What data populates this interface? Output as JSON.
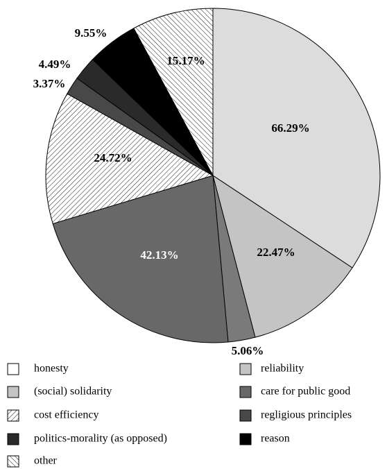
{
  "chart_data": {
    "type": "pie",
    "title": "",
    "slices": [
      {
        "name": "honesty",
        "value": 66.29,
        "label": "66.29%",
        "fill": "#dcdcdc",
        "pattern": "none",
        "label_color": "#000000"
      },
      {
        "name": "reliability",
        "value": 22.47,
        "label": "22.47%",
        "fill": "#c4c4c4",
        "pattern": "none",
        "label_color": "#000000"
      },
      {
        "name": "(social) solidarity",
        "value": 5.06,
        "label": "5.06%",
        "fill": "#7a7a7a",
        "pattern": "none",
        "label_color": "#000000"
      },
      {
        "name": "care for public good",
        "value": 42.13,
        "label": "42.13%",
        "fill": "#686868",
        "pattern": "none",
        "label_color": "#ffffff"
      },
      {
        "name": "cost efficiency",
        "value": 24.72,
        "label": "24.72%",
        "fill": "#ffffff",
        "pattern": "diag-right",
        "label_color": "#000000"
      },
      {
        "name": "regligious principles",
        "value": 3.37,
        "label": "3.37%",
        "fill": "#484848",
        "pattern": "none",
        "label_color": "#000000"
      },
      {
        "name": "politics-morality (as opposed)",
        "value": 4.49,
        "label": "4.49%",
        "fill": "#2a2a2a",
        "pattern": "none",
        "label_color": "#000000"
      },
      {
        "name": "reason",
        "value": 9.55,
        "label": "9.55%",
        "fill": "#000000",
        "pattern": "none",
        "label_color": "#000000"
      },
      {
        "name": "other",
        "value": 15.17,
        "label": "15.17%",
        "fill": "#ffffff",
        "pattern": "diag-left",
        "label_color": "#000000"
      }
    ],
    "legend": {
      "placement": "bottom",
      "entries": [
        {
          "label": "honesty",
          "fill": "#ffffff",
          "pattern": "none"
        },
        {
          "label": "reliability",
          "fill": "#c4c4c4",
          "pattern": "none"
        },
        {
          "label": "(social) solidarity",
          "fill": "#c4c4c4",
          "pattern": "none"
        },
        {
          "label": "care for public good",
          "fill": "#686868",
          "pattern": "none"
        },
        {
          "label": "cost efficiency",
          "fill": "#ffffff",
          "pattern": "diag-right"
        },
        {
          "label": "regligious principles",
          "fill": "#484848",
          "pattern": "none"
        },
        {
          "label": "politics-morality (as opposed)",
          "fill": "#2a2a2a",
          "pattern": "none"
        },
        {
          "label": "reason",
          "fill": "#000000",
          "pattern": "none"
        },
        {
          "label": "other",
          "fill": "#ffffff",
          "pattern": "diag-left"
        }
      ]
    }
  }
}
